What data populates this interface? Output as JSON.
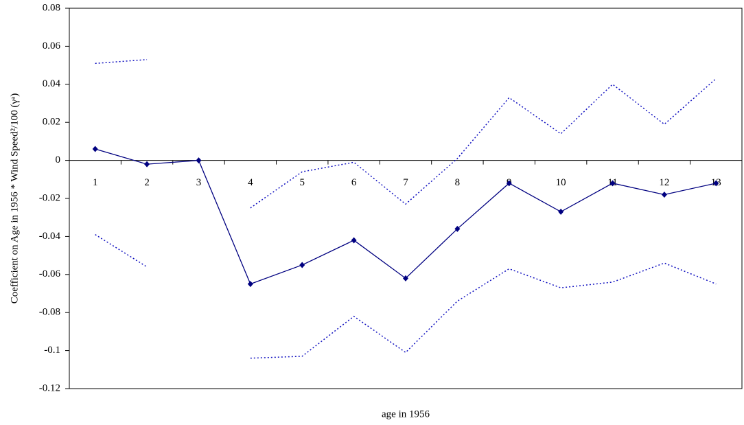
{
  "chart_data": {
    "type": "line",
    "x_label": "age in 1956",
    "y_label": "Coefficient on Age in 1956 * Wind Speed²/100 (γᵃ)",
    "categories": [
      "1",
      "2",
      "3",
      "4",
      "5",
      "6",
      "7",
      "8",
      "9",
      "10",
      "11",
      "12",
      "13"
    ],
    "series": [
      {
        "color": "#000080",
        "dash": false,
        "markers": true,
        "values": [
          0.006,
          -0.002,
          0,
          -0.065,
          -0.055,
          -0.042,
          -0.062,
          -0.036,
          -0.012,
          -0.027,
          -0.012,
          -0.018,
          -0.012
        ]
      },
      {
        "color": "#1010c0",
        "dash": true,
        "markers": false,
        "values": [
          0.051,
          0.053,
          null,
          -0.025,
          -0.006,
          -0.001,
          -0.023,
          0.001,
          0.033,
          0.014,
          0.04,
          0.019,
          0.043
        ]
      },
      {
        "color": "#1010c0",
        "dash": true,
        "markers": false,
        "values": [
          -0.039,
          -0.056,
          null,
          -0.104,
          -0.103,
          -0.082,
          -0.101,
          -0.074,
          -0.057,
          -0.067,
          -0.064,
          -0.054,
          -0.065
        ]
      }
    ],
    "ylim": [
      -0.12,
      0.08
    ],
    "yticks": [
      -0.12,
      -0.1,
      -0.08,
      -0.06,
      -0.04,
      -0.02,
      0,
      0.02,
      0.04,
      0.06,
      0.08
    ],
    "grid": false
  }
}
